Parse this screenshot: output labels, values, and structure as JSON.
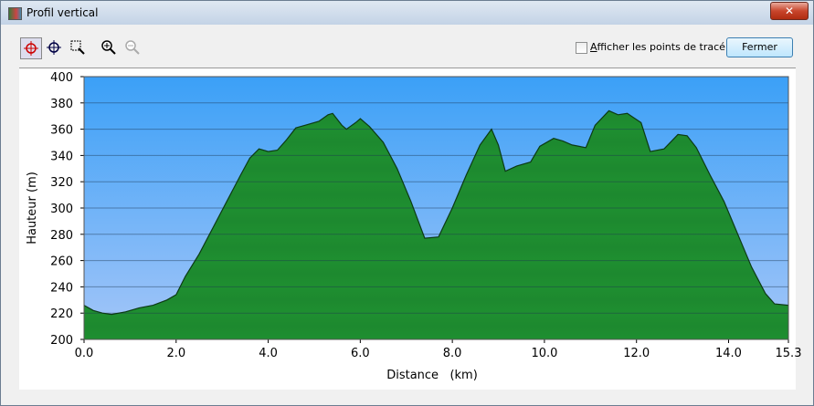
{
  "window": {
    "title": "Profil vertical",
    "checkbox_label": "Afficher les points de tracé",
    "button_label": "Fermer"
  },
  "chart_data": {
    "type": "area",
    "x_label": "Distance   (km)",
    "y_label": "Hauteur (m)",
    "x": [
      0.0,
      0.2,
      0.4,
      0.6,
      0.9,
      1.2,
      1.5,
      1.8,
      2.0,
      2.2,
      2.5,
      2.8,
      3.1,
      3.4,
      3.6,
      3.8,
      4.0,
      4.2,
      4.4,
      4.6,
      4.8,
      5.1,
      5.3,
      5.4,
      5.6,
      5.7,
      5.9,
      6.0,
      6.2,
      6.5,
      6.8,
      7.1,
      7.4,
      7.7,
      8.0,
      8.3,
      8.6,
      8.85,
      9.0,
      9.15,
      9.4,
      9.7,
      9.9,
      10.2,
      10.4,
      10.6,
      10.9,
      11.1,
      11.4,
      11.6,
      11.8,
      12.1,
      12.3,
      12.6,
      12.9,
      13.1,
      13.3,
      13.6,
      13.9,
      14.2,
      14.5,
      14.8,
      15.0,
      15.3
    ],
    "values": [
      226,
      222,
      220,
      219,
      221,
      224,
      226,
      230,
      234,
      248,
      265,
      285,
      305,
      325,
      338,
      345,
      343,
      344,
      352,
      361,
      363,
      366,
      371,
      372,
      363,
      360,
      365,
      368,
      362,
      350,
      330,
      305,
      277,
      278,
      300,
      325,
      348,
      360,
      348,
      328,
      332,
      335,
      347,
      353,
      351,
      348,
      346,
      363,
      374,
      371,
      372,
      365,
      343,
      345,
      356,
      355,
      346,
      325,
      305,
      280,
      255,
      235,
      227,
      226
    ],
    "color": "#1f8f30",
    "xlim": [
      0,
      15.3
    ],
    "xticks": [
      {
        "value": 0,
        "label": "0.0"
      },
      {
        "value": 2,
        "label": "2.0"
      },
      {
        "value": 4,
        "label": "4.0"
      },
      {
        "value": 6,
        "label": "6.0"
      },
      {
        "value": 8,
        "label": "8.0"
      },
      {
        "value": 10,
        "label": "10.0"
      },
      {
        "value": 12,
        "label": "12.0"
      },
      {
        "value": 14,
        "label": "14.0"
      },
      15.3
    ],
    "ylim": [
      200,
      400
    ],
    "yticks": [
      200,
      220,
      240,
      260,
      280,
      300,
      320,
      340,
      360,
      380,
      400
    ],
    "grid": true
  }
}
